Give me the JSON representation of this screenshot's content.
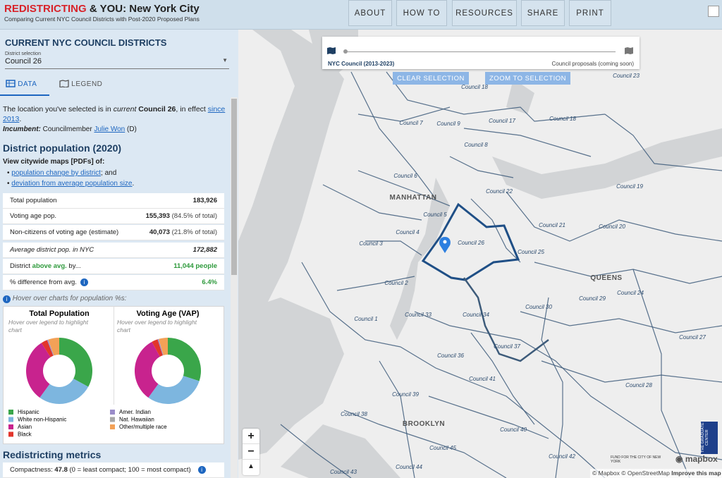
{
  "header": {
    "brand_red": "REDISTRICTING",
    "brand_mid": "& YOU:",
    "brand_city": "New York City",
    "subtitle": "Comparing Current NYC Council Districts with Post-2020 Proposed Plans"
  },
  "nav": [
    "ABOUT",
    "HOW TO",
    "RESOURCES",
    "SHARE",
    "PRINT"
  ],
  "sidebar": {
    "heading": "CURRENT NYC COUNCIL DISTRICTS",
    "select_label": "District selection",
    "select_value": "Council 26",
    "tabs": [
      "DATA",
      "LEGEND"
    ],
    "intro": {
      "t1": "The location you've selected is in",
      "t2": "current",
      "t3": "Council 26",
      "t4": ", in effect",
      "link": "since 2013",
      "t5": "."
    },
    "incumbent": {
      "label": "Incumbent:",
      "role": "Councilmember",
      "name": "Julie Won",
      "party": "(D)"
    },
    "population_heading": "District population (2020)",
    "maps_intro": "View citywide maps [PDFs] of:",
    "map_links": [
      {
        "link": "population change by district",
        "after": "; and"
      },
      {
        "link": "deviation from average population size",
        "after": "."
      }
    ],
    "table": [
      {
        "label": "Total population",
        "value": "183,926"
      },
      {
        "label": "Voting age pop.",
        "value": "155,393",
        "note": "(84.5% of total)"
      },
      {
        "label": "Non-citizens of voting age (estimate)",
        "value": "40,073",
        "note": "(21.8% of total)"
      },
      {
        "label": "Average district pop. in NYC",
        "value": "172,882"
      },
      {
        "label_parts": [
          "District",
          "above avg.",
          "by..."
        ],
        "value": "11,044 people"
      },
      {
        "label": "% difference from avg.",
        "value": "6.4%"
      }
    ],
    "hover_note": "Hover over charts for population %s:",
    "metrics_heading": "Redistricting metrics",
    "compactness_label": "Compactness:",
    "compactness_value": "47.8",
    "compactness_note": "(0 = least compact; 100 = most compact)"
  },
  "population_charts": {
    "legend": [
      {
        "name": "Hispanic",
        "color": "#3aa64a"
      },
      {
        "name": "White non-Hispanic",
        "color": "#7db6df"
      },
      {
        "name": "Asian",
        "color": "#c8238e"
      },
      {
        "name": "Black",
        "color": "#e2352b"
      },
      {
        "name": "Amer. Indian",
        "color": "#9a8cc9"
      },
      {
        "name": "Nat. Hawaiian",
        "color": "#a8a8a8"
      },
      {
        "name": "Other/multiple race",
        "color": "#f3a157"
      }
    ],
    "charts": [
      {
        "type": "donut",
        "title": "Total Population",
        "hint": "Hover over legend to highlight chart",
        "values": [
          33,
          27,
          31,
          3,
          0.5,
          0.1,
          5.4
        ]
      },
      {
        "type": "donut",
        "title": "Voting Age (VAP)",
        "hint": "Hover over legend to highlight chart",
        "values": [
          30,
          30,
          32,
          3,
          0.5,
          0.1,
          4.4
        ]
      }
    ]
  },
  "map": {
    "timeline_left": "NYC Council (2013-2023)",
    "timeline_right": "Council proposals (coming soon)",
    "buttons": [
      "CLEAR SELECTION",
      "ZOOM TO SELECTION"
    ],
    "boroughs": [
      "MANHATTAN",
      "QUEENS",
      "BROOKLYN"
    ],
    "districts": [
      "Council 18",
      "Council 7",
      "Council 9",
      "Council 17",
      "Council 18",
      "Council 8",
      "Council 6",
      "Council 22",
      "Council 19",
      "Council 5",
      "Council 4",
      "Council 21",
      "Council 20",
      "Council 3",
      "Council 26",
      "Council 25",
      "Council 2",
      "Council 29",
      "Council 24",
      "Council 30",
      "Council 1",
      "Council 33",
      "Council 34",
      "Council 37",
      "Council 27",
      "Council 36",
      "Council 41",
      "Council 28",
      "Council 39",
      "Council 38",
      "Council 40",
      "Council 45",
      "Council 44",
      "Council 43",
      "Council 42",
      "Council 23"
    ],
    "zoom": [
      "+",
      "−"
    ],
    "attribution": [
      "© Mapbox",
      "© OpenStreetMap",
      "Improve this map"
    ],
    "mapbox": "mapbox",
    "fund": "FUND FOR THE CITY OF NEW YORK",
    "gc": "THE GRADUATE CENTER"
  }
}
